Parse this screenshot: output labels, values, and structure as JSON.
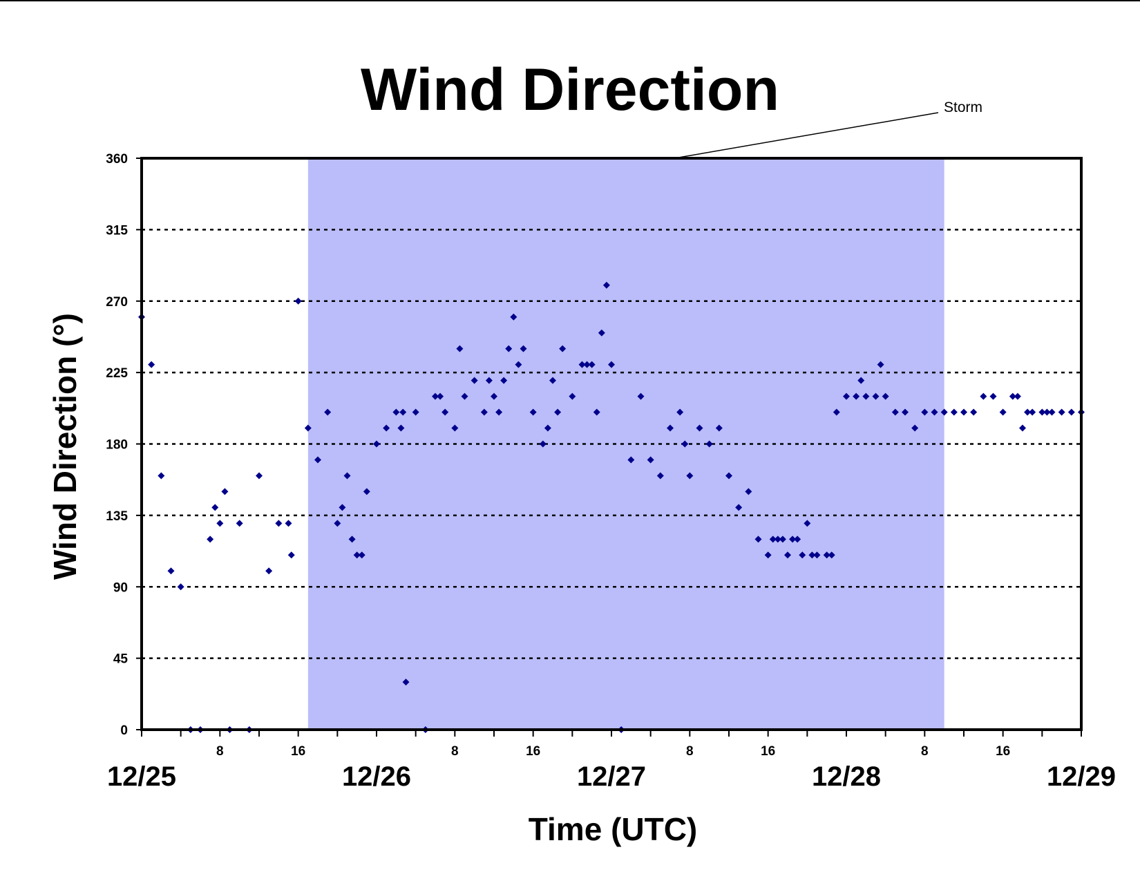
{
  "chart_data": {
    "type": "scatter",
    "title": "Wind Direction",
    "xlabel": "Time (UTC)",
    "ylabel": "Wind Direction (°)",
    "ylim": [
      0,
      360
    ],
    "yticks": [
      "0",
      "45",
      "90",
      "135",
      "180",
      "225",
      "270",
      "315",
      "360"
    ],
    "xlim": [
      "12/25 00",
      "12/29 00"
    ],
    "x_major_labels": [
      "12/25",
      "12/26",
      "12/27",
      "12/28",
      "12/29"
    ],
    "x_minor_labels": [
      "8",
      "16"
    ],
    "grid": "horizontal dashed",
    "annotation": {
      "text": "Storm",
      "span": [
        "12/25 17",
        "12/28 10"
      ]
    },
    "colors": {
      "marker": "#00008b",
      "storm_band": "#bbbdfa",
      "grid": "#000000"
    },
    "series": [
      {
        "x": [
          "12/25 00",
          "12/25 01",
          "12/25 02",
          "12/25 03",
          "12/25 04",
          "12/25 05",
          "12/25 06",
          "12/25 07",
          "12/25 07.5",
          "12/25 08",
          "12/25 08.5",
          "12/25 09",
          "12/25 10",
          "12/25 11",
          "12/25 12",
          "12/25 13",
          "12/25 14",
          "12/25 15",
          "12/25 15.3",
          "12/25 16",
          "12/25 17",
          "12/25 18",
          "12/25 19",
          "12/25 20",
          "12/25 20.5",
          "12/25 21",
          "12/25 21.5",
          "12/25 22",
          "12/25 22.5",
          "12/25 23",
          "12/26 00",
          "12/26 01",
          "12/26 02",
          "12/26 02.5",
          "12/26 02.7",
          "12/26 03",
          "12/26 04",
          "12/26 05",
          "12/26 06",
          "12/26 06.5",
          "12/26 07",
          "12/26 08",
          "12/26 08.5",
          "12/26 09",
          "12/26 10",
          "12/26 11",
          "12/26 11.5",
          "12/26 12",
          "12/26 12.5",
          "12/26 13",
          "12/26 13.5",
          "12/26 14",
          "12/26 14.5",
          "12/26 15",
          "12/26 16",
          "12/26 17",
          "12/26 17.5",
          "12/26 18",
          "12/26 18.5",
          "12/26 19",
          "12/26 20",
          "12/26 21",
          "12/26 21.5",
          "12/26 22",
          "12/26 22.5",
          "12/26 23",
          "12/26 23.5",
          "12/27 00",
          "12/27 01",
          "12/27 02",
          "12/27 03",
          "12/27 04",
          "12/27 05",
          "12/27 06",
          "12/27 07",
          "12/27 07.5",
          "12/27 08",
          "12/27 09",
          "12/27 10",
          "12/27 11",
          "12/27 12",
          "12/27 13",
          "12/27 14",
          "12/27 15",
          "12/27 16",
          "12/27 16.5",
          "12/27 17",
          "12/27 17.5",
          "12/27 18",
          "12/27 18.5",
          "12/27 19",
          "12/27 19.5",
          "12/27 20",
          "12/27 20.5",
          "12/27 21",
          "12/27 22",
          "12/27 22.5",
          "12/27 23",
          "12/28 00",
          "12/28 01",
          "12/28 01.5",
          "12/28 02",
          "12/28 03",
          "12/28 03.5",
          "12/28 04",
          "12/28 05",
          "12/28 06",
          "12/28 07",
          "12/28 08",
          "12/28 09",
          "12/28 10",
          "12/28 11",
          "12/28 12",
          "12/28 13",
          "12/28 14",
          "12/28 15",
          "12/28 16",
          "12/28 17",
          "12/28 17.5",
          "12/28 18",
          "12/28 18.5",
          "12/28 19",
          "12/28 20",
          "12/28 20.5",
          "12/28 21",
          "12/28 22",
          "12/28 23",
          "12/29 00"
        ],
        "y": [
          260,
          230,
          160,
          100,
          90,
          0,
          0,
          120,
          140,
          130,
          150,
          0,
          130,
          0,
          160,
          100,
          130,
          130,
          110,
          270,
          190,
          170,
          200,
          130,
          140,
          160,
          120,
          110,
          110,
          150,
          180,
          190,
          200,
          190,
          200,
          30,
          200,
          0,
          210,
          210,
          200,
          190,
          240,
          210,
          220,
          200,
          220,
          210,
          200,
          220,
          240,
          260,
          230,
          240,
          200,
          180,
          190,
          220,
          200,
          240,
          210,
          230,
          230,
          230,
          200,
          250,
          280,
          230,
          0,
          170,
          210,
          170,
          160,
          190,
          200,
          180,
          160,
          190,
          180,
          190,
          160,
          140,
          150,
          120,
          110,
          120,
          120,
          120,
          110,
          120,
          120,
          110,
          130,
          110,
          110,
          110,
          110,
          200,
          210,
          210,
          220,
          210,
          210,
          230,
          210,
          200,
          200,
          190,
          200,
          200,
          200,
          200,
          200,
          200,
          210,
          210,
          200,
          210,
          210,
          190,
          200,
          200,
          200,
          200,
          200,
          200,
          200,
          200
        ]
      }
    ]
  }
}
